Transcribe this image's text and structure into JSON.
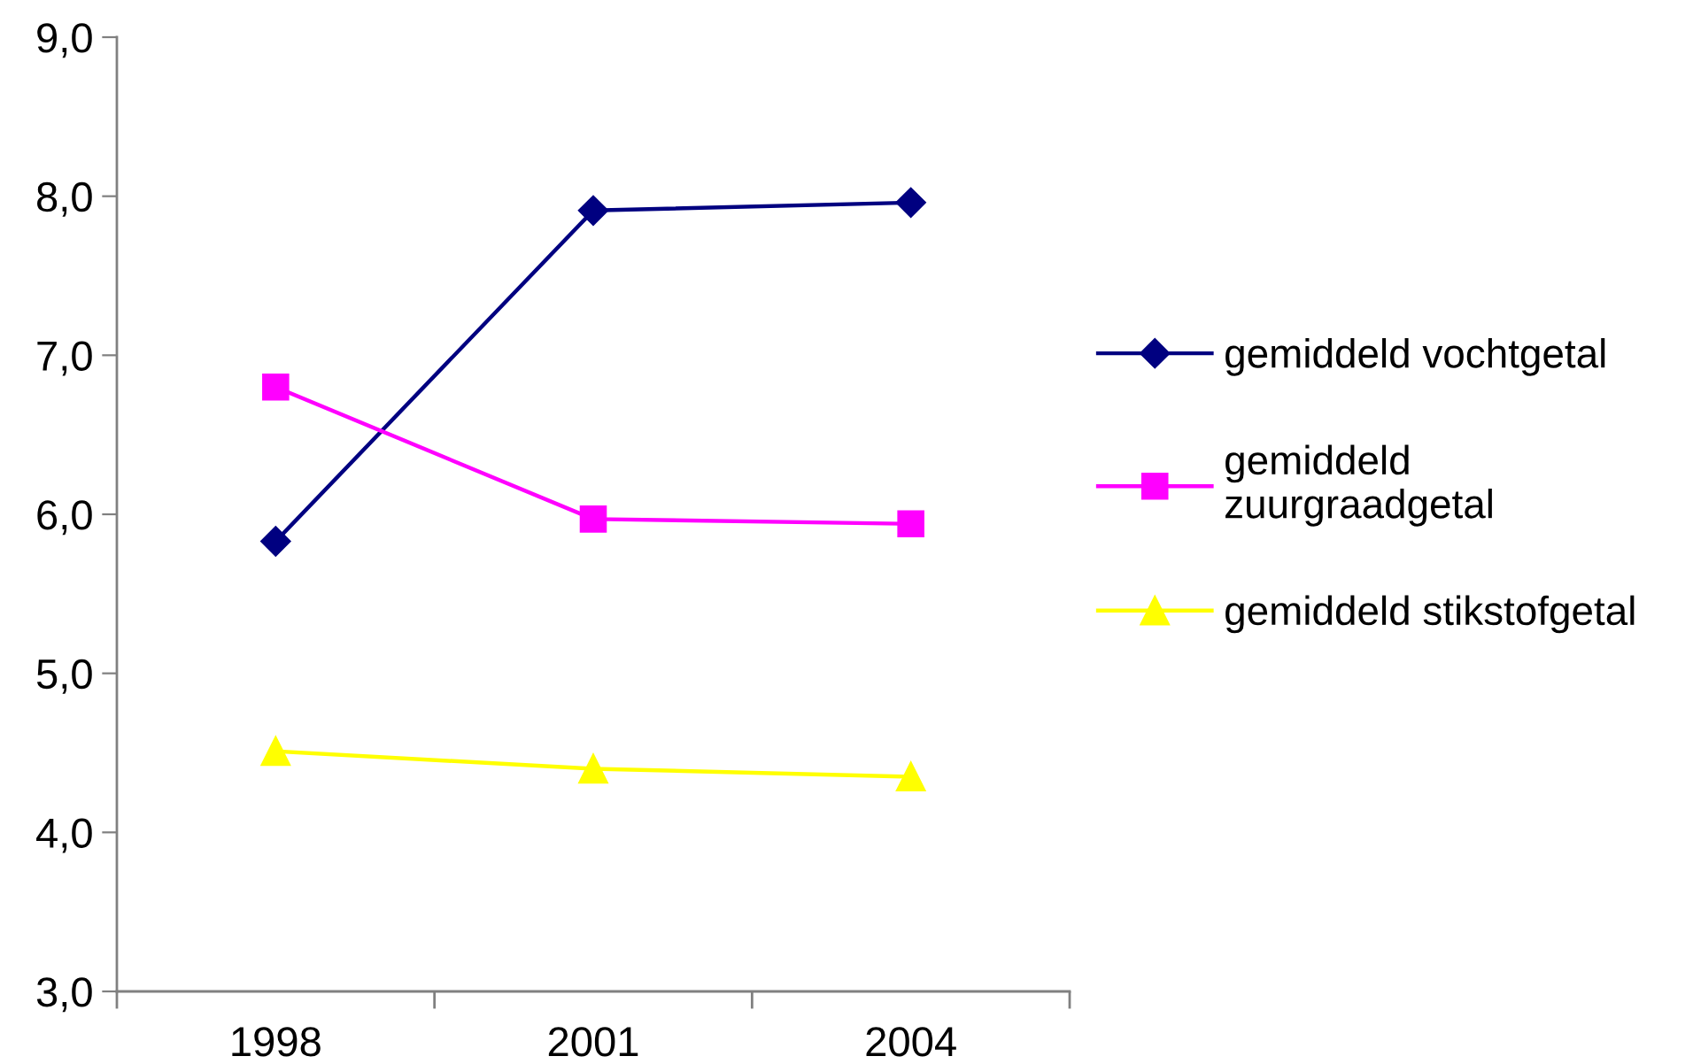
{
  "chart_data": {
    "type": "line",
    "categories": [
      "1998",
      "2001",
      "2004"
    ],
    "series": [
      {
        "name": "gemiddeld vochtgetal",
        "color": "#000080",
        "marker": "diamond",
        "values": [
          5.83,
          7.91,
          7.96
        ]
      },
      {
        "name": "gemiddeld\nzuurgraadgetal",
        "color": "#ff00ff",
        "marker": "square",
        "values": [
          6.8,
          5.97,
          5.94
        ]
      },
      {
        "name": "gemiddeld stikstofgetal",
        "color": "#ffff00",
        "marker": "triangle",
        "values": [
          4.51,
          4.4,
          4.35
        ]
      }
    ],
    "ylim": [
      3,
      9
    ],
    "yticks": [
      {
        "value": 3,
        "label": "3,0"
      },
      {
        "value": 4,
        "label": "4,0"
      },
      {
        "value": 5,
        "label": "5,0"
      },
      {
        "value": 6,
        "label": "6,0"
      },
      {
        "value": 7,
        "label": "7,0"
      },
      {
        "value": 8,
        "label": "8,0"
      },
      {
        "value": 9,
        "label": "9,0"
      }
    ],
    "grid": false,
    "legend": "right",
    "line_style": "solid"
  }
}
